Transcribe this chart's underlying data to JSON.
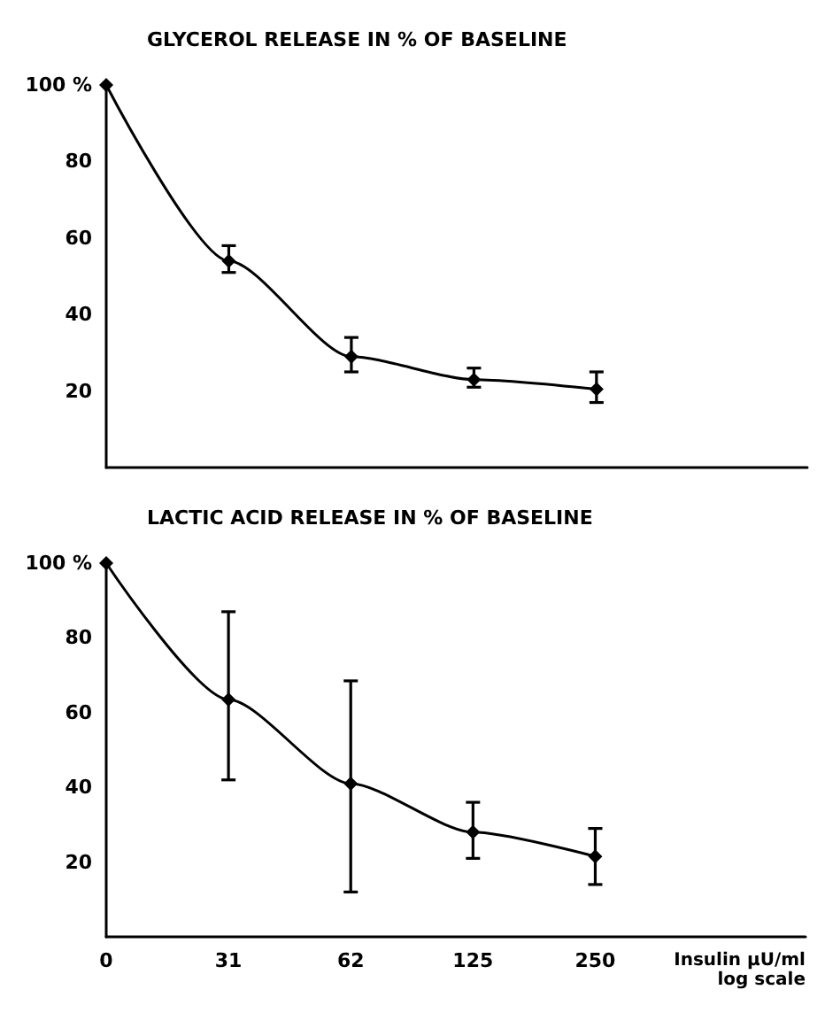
{
  "chart_data": [
    {
      "type": "line",
      "title": "GLYCEROL RELEASE IN % OF BASELINE",
      "categories": [
        "0",
        "31",
        "62",
        "125",
        "250"
      ],
      "series": [
        {
          "color": "#000000",
          "values": [
            100,
            54,
            29,
            23,
            20.5
          ],
          "errors": [
            null,
            [
              51,
              58
            ],
            [
              25,
              34
            ],
            [
              21,
              26
            ],
            [
              17,
              25
            ]
          ]
        }
      ],
      "ylim": [
        0,
        100
      ],
      "yticks": [
        20,
        40,
        60,
        80,
        {
          "value": 100,
          "label": "100 %"
        }
      ],
      "tick_labels": "y",
      "marker": "diamond",
      "line_style": "solid"
    },
    {
      "type": "line",
      "title": "LACTIC ACID RELEASE IN % OF BASELINE",
      "xlabel": "Insulin µU/ml\nlog scale",
      "categories": [
        "0",
        "31",
        "62",
        "125",
        "250"
      ],
      "series": [
        {
          "color": "#000000",
          "values": [
            100,
            63.5,
            41,
            28,
            21.5
          ],
          "errors": [
            null,
            [
              42,
              87
            ],
            [
              12,
              68.5
            ],
            [
              21,
              36
            ],
            [
              14,
              29
            ]
          ]
        }
      ],
      "ylim": [
        0,
        100
      ],
      "yticks": [
        20,
        40,
        60,
        80,
        {
          "value": 100,
          "label": "100 %"
        }
      ],
      "marker": "diamond",
      "line_style": "solid"
    }
  ]
}
